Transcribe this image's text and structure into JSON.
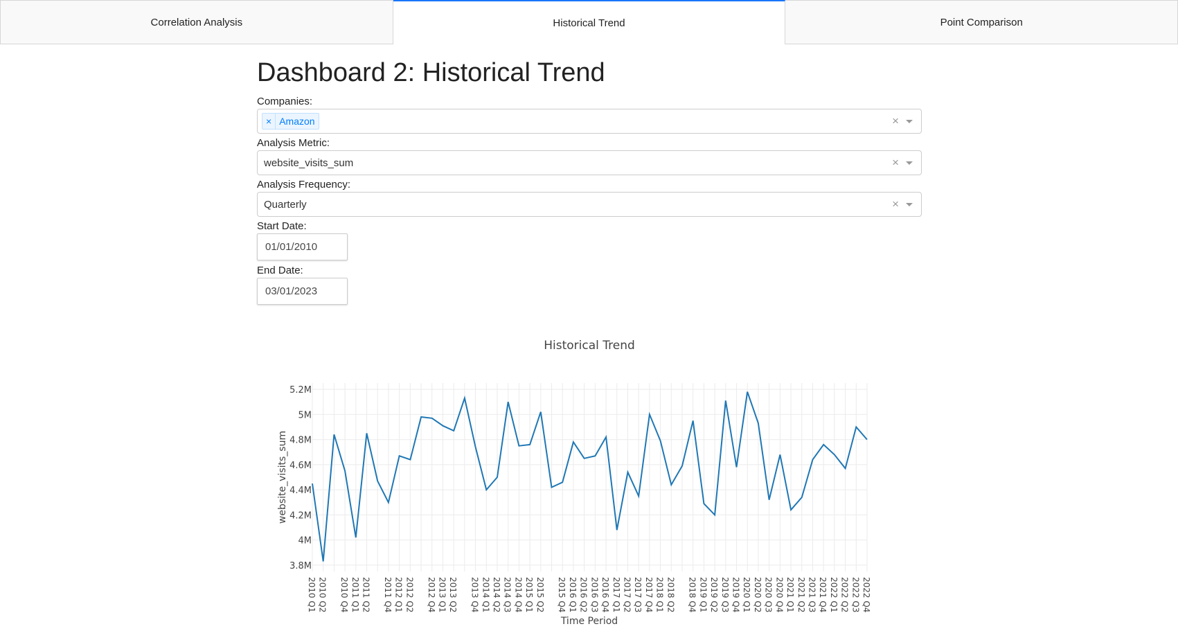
{
  "tabs": [
    {
      "label": "Correlation Analysis",
      "active": false
    },
    {
      "label": "Historical Trend",
      "active": true
    },
    {
      "label": "Point Comparison",
      "active": false
    }
  ],
  "page_title": "Dashboard 2: Historical Trend",
  "companies": {
    "label": "Companies:",
    "selected": [
      "Amazon"
    ],
    "chip_remove": "×",
    "clear": "×"
  },
  "metric": {
    "label": "Analysis Metric:",
    "value": "website_visits_sum",
    "clear": "×"
  },
  "frequency": {
    "label": "Analysis Frequency:",
    "value": "Quarterly",
    "clear": "×"
  },
  "start_date": {
    "label": "Start Date:",
    "value": "01/01/2010"
  },
  "end_date": {
    "label": "End Date:",
    "value": "03/01/2023"
  },
  "accent_color": "#1975FA",
  "line_color": "#1f77b4",
  "chart_data": {
    "type": "line",
    "title": "Historical Trend",
    "xlabel": "Time Period",
    "ylabel": "website_visits_sum",
    "ylim": [
      3.75,
      5.25
    ],
    "yticks": [
      {
        "value": 3.8,
        "label": "3.8M"
      },
      {
        "value": 4.0,
        "label": "4M"
      },
      {
        "value": 4.2,
        "label": "4.2M"
      },
      {
        "value": 4.4,
        "label": "4.4M"
      },
      {
        "value": 4.6,
        "label": "4.6M"
      },
      {
        "value": 4.8,
        "label": "4.8M"
      },
      {
        "value": 5.0,
        "label": "5M"
      },
      {
        "value": 5.2,
        "label": "5.2M"
      }
    ],
    "grid": true,
    "x": [
      "2010 Q1",
      "2010 Q2",
      "2010 Q3",
      "2010 Q4",
      "2011 Q1",
      "2011 Q2",
      "2011 Q3",
      "2011 Q4",
      "2012 Q1",
      "2012 Q2",
      "2012 Q3",
      "2012 Q4",
      "2013 Q1",
      "2013 Q2",
      "2013 Q3",
      "2013 Q4",
      "2014 Q1",
      "2014 Q2",
      "2014 Q3",
      "2014 Q4",
      "2015 Q1",
      "2015 Q2",
      "2015 Q3",
      "2015 Q4",
      "2016 Q1",
      "2016 Q2",
      "2016 Q3",
      "2016 Q4",
      "2017 Q1",
      "2017 Q2",
      "2017 Q3",
      "2017 Q4",
      "2018 Q1",
      "2018 Q2",
      "2018 Q3",
      "2018 Q4",
      "2019 Q1",
      "2019 Q2",
      "2019 Q3",
      "2019 Q4",
      "2020 Q1",
      "2020 Q2",
      "2020 Q3",
      "2020 Q4",
      "2021 Q1",
      "2021 Q2",
      "2021 Q3",
      "2021 Q4",
      "2022 Q1",
      "2022 Q2",
      "2022 Q3",
      "2022 Q4"
    ],
    "x_tick_labels": [
      "2010 Q1",
      "2010 Q2",
      "2010 Q4",
      "2011 Q1",
      "2011 Q2",
      "2011 Q4",
      "2012 Q1",
      "2012 Q2",
      "2012 Q4",
      "2013 Q1",
      "2013 Q2",
      "2013 Q4",
      "2014 Q1",
      "2014 Q2",
      "2014 Q3",
      "2014 Q4",
      "2015 Q1",
      "2015 Q2",
      "2015 Q4",
      "2016 Q1",
      "2016 Q2",
      "2016 Q3",
      "2016 Q4",
      "2017 Q1",
      "2017 Q2",
      "2017 Q3",
      "2017 Q4",
      "2018 Q1",
      "2018 Q2",
      "2018 Q4",
      "2019 Q1",
      "2019 Q2",
      "2019 Q3",
      "2019 Q4",
      "2020 Q1",
      "2020 Q2",
      "2020 Q3",
      "2020 Q4",
      "2021 Q1",
      "2021 Q2",
      "2021 Q3",
      "2021 Q4",
      "2022 Q1",
      "2022 Q2",
      "2022 Q3",
      "2022 Q4"
    ],
    "series": [
      {
        "values": [
          4.45,
          3.83,
          4.84,
          4.55,
          4.02,
          4.85,
          4.47,
          4.3,
          4.67,
          4.64,
          4.98,
          4.97,
          4.91,
          4.87,
          5.13,
          4.74,
          4.4,
          4.5,
          5.1,
          4.75,
          4.76,
          5.02,
          4.42,
          4.46,
          4.78,
          4.65,
          4.67,
          4.82,
          4.08,
          4.54,
          4.35,
          5.0,
          4.79,
          4.44,
          4.59,
          4.95,
          4.29,
          4.2,
          5.11,
          4.58,
          5.18,
          4.93,
          4.32,
          4.68,
          4.24,
          4.34,
          4.64,
          4.76,
          4.68,
          4.57,
          4.9,
          4.8
        ]
      }
    ]
  }
}
